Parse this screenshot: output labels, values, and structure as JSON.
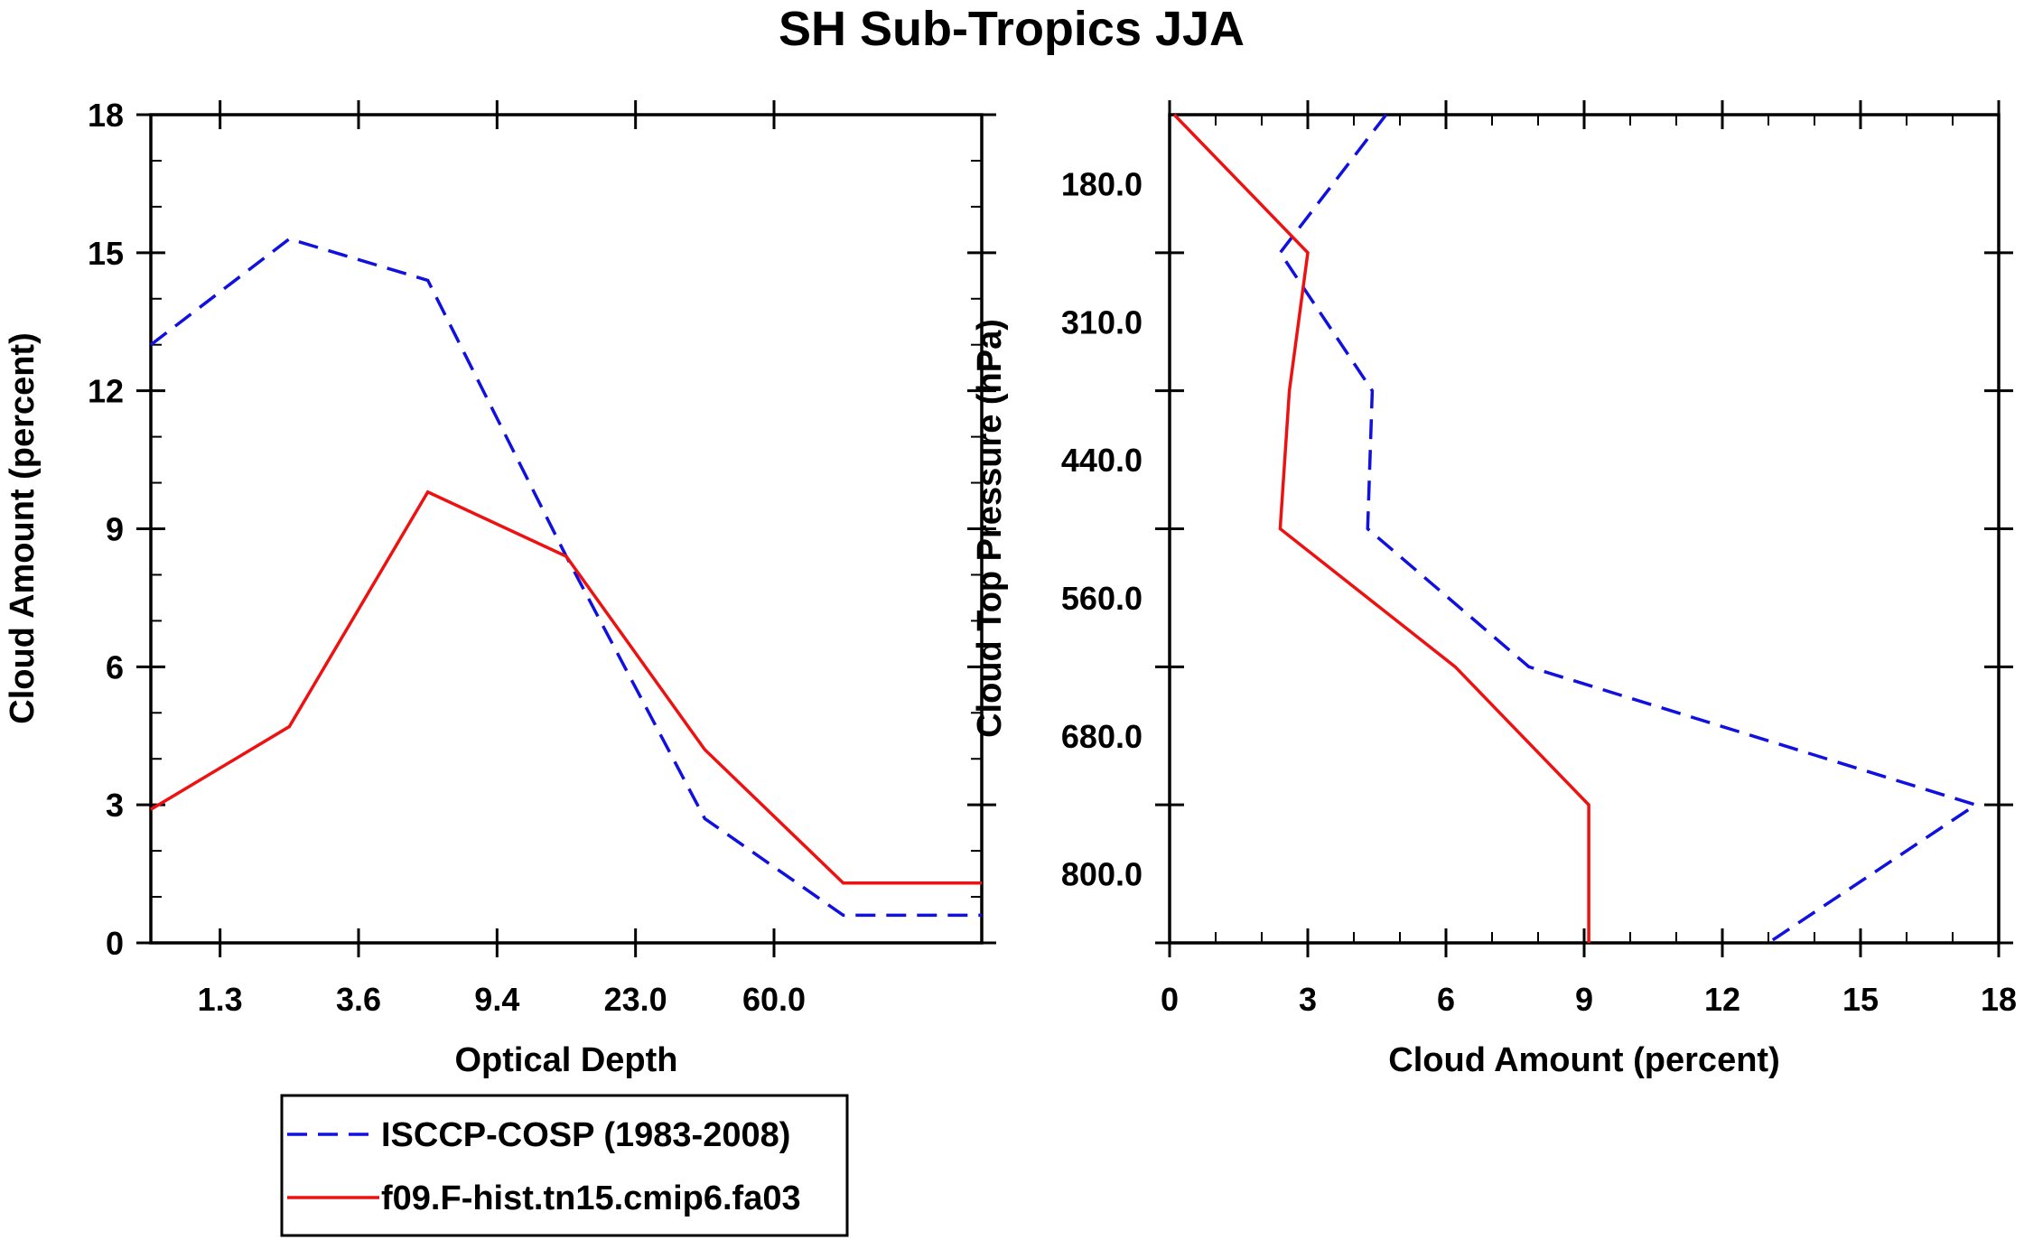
{
  "title": "SH Sub-Tropics JJA",
  "chart_data": [
    {
      "type": "line",
      "title": "",
      "xlabel": "Optical Depth",
      "ylabel": "Cloud Amount (percent)",
      "x_tick_labels": [
        "1.3",
        "3.6",
        "9.4",
        "23.0",
        "60.0"
      ],
      "y_tick_labels": [
        "0",
        "3",
        "6",
        "9",
        "12",
        "15",
        "18"
      ],
      "ylim": [
        0,
        18
      ],
      "x_bins": 7,
      "series": [
        {
          "name": "ISCCP-COSP (1983-2008)",
          "color": "#1010e0",
          "dash": true,
          "x": [
            0,
            1,
            2,
            3,
            4,
            5,
            6
          ],
          "values": [
            13.0,
            15.3,
            14.4,
            8.4,
            2.7,
            0.6,
            0.6
          ]
        },
        {
          "name": "f09.F-hist.tn15.cmip6.fa03",
          "color": "#ee1111",
          "dash": false,
          "x": [
            0,
            1,
            2,
            3,
            4,
            5,
            6
          ],
          "values": [
            2.9,
            4.7,
            9.8,
            8.4,
            4.2,
            1.3,
            1.3
          ]
        }
      ]
    },
    {
      "type": "line",
      "title": "",
      "xlabel": "Cloud Amount (percent)",
      "ylabel": "Cloud Top Pressure (hPa)",
      "x_tick_labels": [
        "0",
        "3",
        "6",
        "9",
        "12",
        "15",
        "18"
      ],
      "xlim": [
        0,
        18
      ],
      "y_tick_labels": [
        "180.0",
        "310.0",
        "440.0",
        "560.0",
        "680.0",
        "800.0"
      ],
      "series": [
        {
          "name": "ISCCP-COSP (1983-2008)",
          "color": "#1010e0",
          "dash": true,
          "values": [
            4.7,
            2.4,
            4.4,
            4.3,
            7.8,
            17.5,
            13.0
          ]
        },
        {
          "name": "f09.F-hist.tn15.cmip6.fa03",
          "color": "#ee1111",
          "dash": false,
          "values": [
            0.1,
            3.0,
            2.6,
            2.4,
            6.2,
            9.1,
            9.1
          ]
        }
      ]
    }
  ],
  "legend": {
    "entries": [
      {
        "label": "ISCCP-COSP (1983-2008)",
        "color": "#1010e0",
        "dash": true
      },
      {
        "label": "f09.F-hist.tn15.cmip6.fa03",
        "color": "#ee1111",
        "dash": false
      }
    ]
  }
}
